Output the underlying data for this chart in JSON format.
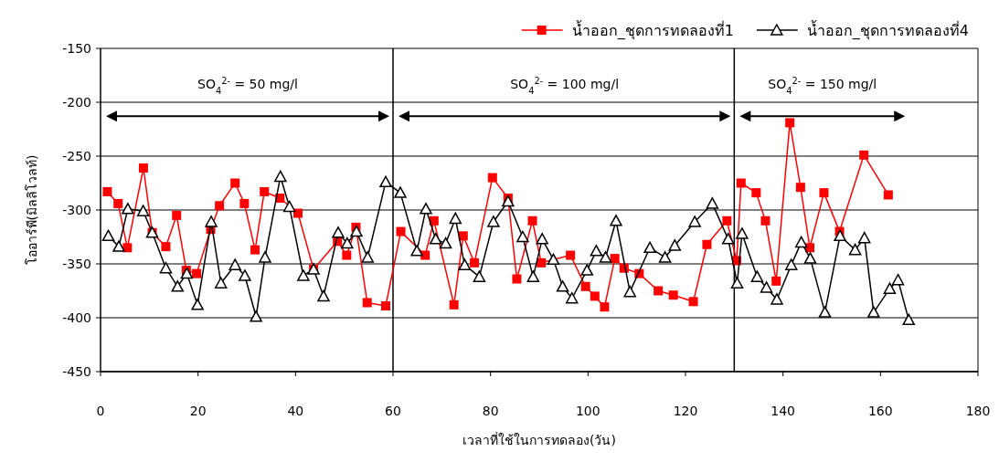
{
  "chart_data": {
    "type": "line",
    "xlabel": "เวลาที่ใช้ในการทดลอง(วัน)",
    "ylabel": "โออาร์พี(มิลลิโวลท์)",
    "xlim": [
      0,
      180
    ],
    "xticks": [
      0,
      20,
      40,
      60,
      80,
      100,
      120,
      140,
      160,
      180
    ],
    "ylim": [
      -450,
      -150
    ],
    "yticks": [
      -450,
      -400,
      -350,
      -300,
      -250,
      -200,
      -150
    ],
    "grid": "y",
    "legend": "top right",
    "ref_lines": [
      {
        "axis": "x",
        "value": 60,
        "color": "#000000"
      },
      {
        "axis": "x",
        "value": 130,
        "color": "#000000"
      }
    ],
    "annotations": [
      "SO$_{4}$$^{2-}$ = 50 mg/l",
      "SO$_{4}$$^{2-}$ = 100 mg/l",
      "SO$_{4}$$^{2-}$ = 150 mg/l"
    ],
    "series": [
      {
        "name": "น้ำออก_ชุดการทดลองที่1",
        "color": "#ff0000",
        "marker": "square",
        "x": [
          1.4,
          3.6,
          5.5,
          8.8,
          10.6,
          13.4,
          15.6,
          17.6,
          19.7,
          22.6,
          24.4,
          27.6,
          29.5,
          31.7,
          33.6,
          36.8,
          40.5,
          43.7,
          48.6,
          50.5,
          52.4,
          54.7,
          58.5,
          61.6,
          66.6,
          68.4,
          72.5,
          74.4,
          76.7,
          80.4,
          83.6,
          85.4,
          88.6,
          90.4,
          96.4,
          99.5,
          101.4,
          103.4,
          105.5,
          107.4,
          110.5,
          114.4,
          117.5,
          121.6,
          124.4,
          128.5,
          130.5,
          131.4,
          134.5,
          136.4,
          138.6,
          141.4,
          143.6,
          145.5,
          148.4,
          151.6,
          156.6,
          161.6
        ],
        "values": [
          -283,
          -294,
          -335,
          -261,
          -321,
          -334,
          -305,
          -356,
          -359,
          -318,
          -296,
          -275,
          -294,
          -337,
          -283,
          -289,
          -303,
          -355,
          -329,
          -342,
          -316,
          -386,
          -389,
          -320,
          -342,
          -310,
          -388,
          -324,
          -349,
          -270,
          -289,
          -364,
          -310,
          -349,
          -342,
          -371,
          -380,
          -390,
          -345,
          -354,
          -359,
          -375,
          -379,
          -385,
          -332,
          -310,
          -347,
          -275,
          -284,
          -310,
          -366,
          -219,
          -279,
          -335,
          -284,
          -320,
          -249,
          -286
        ]
      },
      {
        "name": "น้ำออก_ชุดการทดลองที่4",
        "color": "#000000",
        "marker": "triangle",
        "x": [
          1.6,
          3.75,
          5.6,
          8.75,
          10.6,
          13.4,
          15.8,
          17.7,
          19.9,
          22.7,
          24.7,
          27.6,
          29.6,
          31.9,
          33.75,
          36.9,
          38.75,
          41.6,
          43.7,
          45.75,
          48.75,
          50.6,
          52.5,
          54.8,
          58.5,
          61.5,
          64.9,
          66.75,
          68.75,
          70.8,
          72.8,
          74.7,
          77.7,
          80.6,
          83.6,
          86.6,
          88.75,
          90.6,
          92.9,
          94.8,
          96.7,
          99.8,
          101.7,
          103.6,
          105.75,
          108.6,
          112.7,
          115.8,
          117.8,
          121.9,
          125.5,
          128.75,
          130.6,
          131.6,
          134.7,
          136.6,
          138.75,
          141.7,
          143.75,
          145.6,
          148.6,
          151.7,
          154.8,
          156.7,
          158.6,
          161.9,
          163.6,
          165.8
        ],
        "values": [
          -324,
          -334,
          -299,
          -301,
          -321,
          -354,
          -371,
          -359,
          -388,
          -311,
          -368,
          -351,
          -361,
          -399,
          -344,
          -269,
          -297,
          -361,
          -355,
          -380,
          -321,
          -331,
          -320,
          -344,
          -274,
          -284,
          -338,
          -299,
          -327,
          -331,
          -308,
          -351,
          -362,
          -311,
          -292,
          -325,
          -362,
          -327,
          -346,
          -371,
          -382,
          -356,
          -338,
          -344,
          -310,
          -376,
          -335,
          -344,
          -333,
          -311,
          -294,
          -327,
          -368,
          -322,
          -362,
          -372,
          -383,
          -351,
          -330,
          -345,
          -395,
          -324,
          -337,
          -326,
          -395,
          -373,
          -365,
          -402
        ]
      }
    ]
  }
}
